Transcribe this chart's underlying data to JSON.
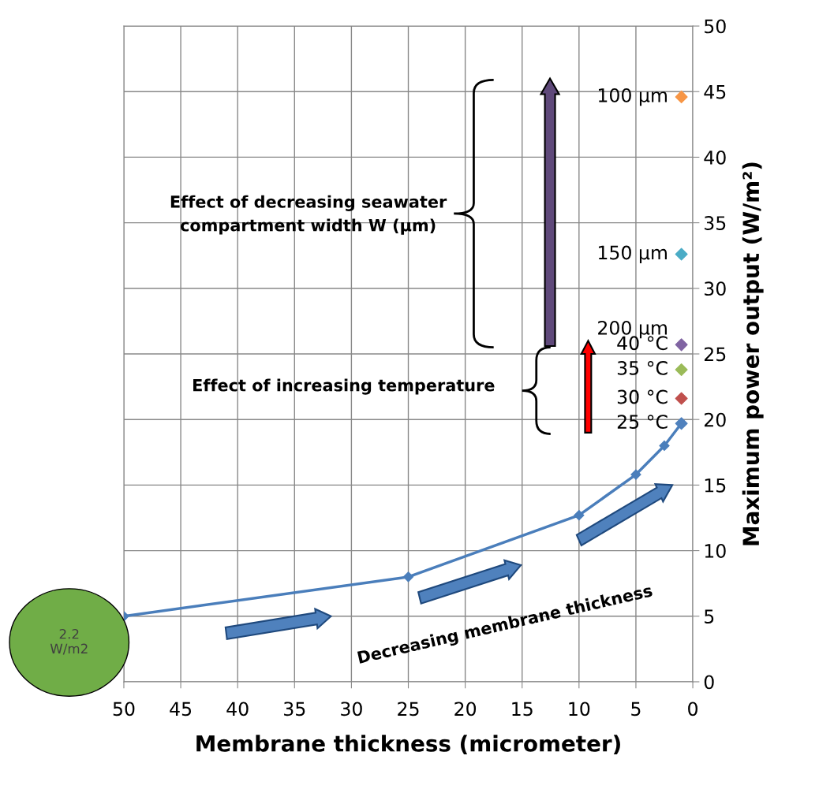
{
  "chart_data": {
    "type": "line",
    "xlabel": "Membrane thickness (micrometer)",
    "ylabel": "Maximum power output (W/m²)",
    "xlim": [
      50,
      0
    ],
    "ylim": [
      0,
      50
    ],
    "xticks": [
      50,
      45,
      40,
      35,
      30,
      25,
      20,
      15,
      10,
      5,
      0
    ],
    "yticks": [
      0,
      5,
      10,
      15,
      20,
      25,
      30,
      35,
      40,
      45,
      50
    ],
    "grid": true,
    "marker": "diamond",
    "line_style": "solid",
    "series": [
      {
        "color": "#4a7ebb",
        "x": [
          50,
          25,
          10,
          5,
          2.5,
          1
        ],
        "values": [
          5.0,
          8.0,
          12.7,
          15.8,
          18.0,
          19.7
        ]
      },
      {
        "type": "scatter",
        "name": "100 µm",
        "color": "#f79646",
        "x": [
          1
        ],
        "values": [
          44.6
        ]
      },
      {
        "type": "scatter",
        "name": "150 µm",
        "color": "#4bacc6",
        "x": [
          1
        ],
        "values": [
          32.6
        ]
      },
      {
        "type": "scatter",
        "name": "40 °C",
        "color": "#8064a2",
        "x": [
          1
        ],
        "values": [
          25.7
        ]
      },
      {
        "type": "scatter",
        "name": "35 °C",
        "color": "#9bbb59",
        "x": [
          1
        ],
        "values": [
          23.8
        ]
      },
      {
        "type": "scatter",
        "name": "30 °C",
        "color": "#c0504d",
        "x": [
          1
        ],
        "values": [
          21.6
        ]
      },
      {
        "type": "scatter",
        "name": "25 °C",
        "color": "#4f81bd",
        "x": [
          1
        ],
        "values": [
          19.7
        ]
      }
    ],
    "annotations": [
      {
        "text": "200 µm",
        "x": 1,
        "y": 25.7
      },
      "Effect of decreasing seawater\ncompartment width W (µm)",
      "Effect of increasing temperature",
      "Decreasing membrane thickness",
      "2.2\nW/m2"
    ]
  }
}
